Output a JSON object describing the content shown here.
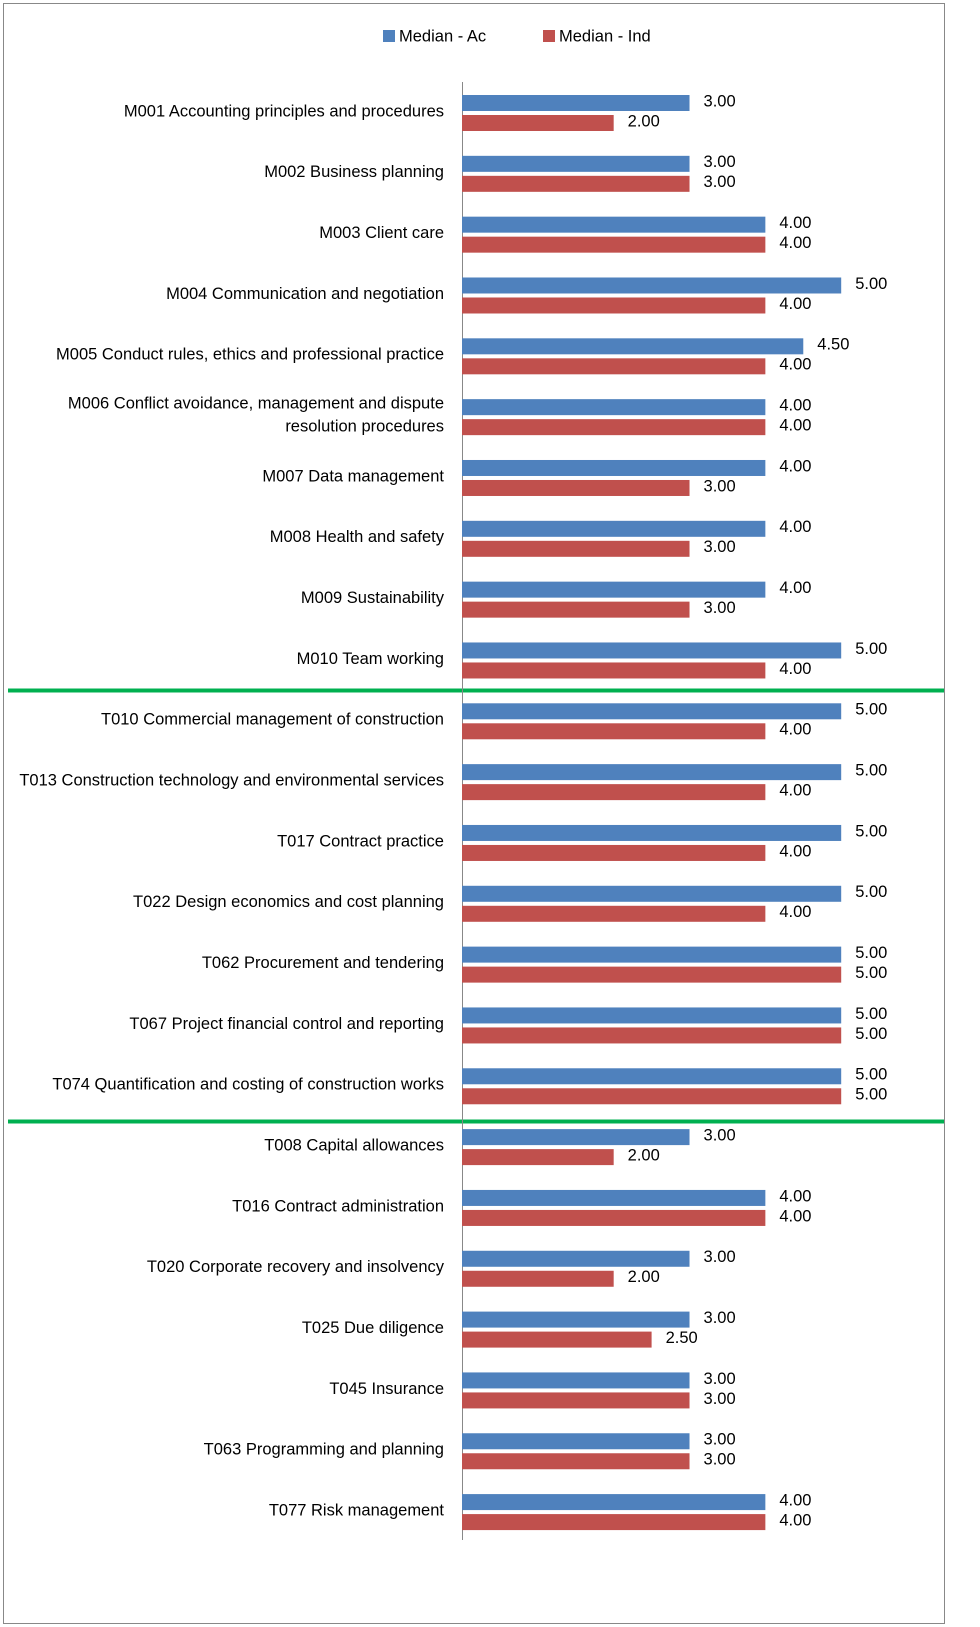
{
  "chart_data": {
    "type": "bar",
    "orientation": "horizontal",
    "categories": [
      "M001 Accounting principles and procedures",
      "M002 Business planning",
      "M003 Client care",
      "M004 Communication and negotiation",
      "M005 Conduct rules, ethics and professional practice",
      "M006 Conflict avoidance, management and dispute resolution procedures",
      "M007 Data management",
      "M008 Health and safety",
      "M009 Sustainability",
      "M010 Team working",
      "T010 Commercial management of construction",
      "T013 Construction technology and environmental services",
      "T017 Contract practice",
      "T022 Design economics and cost planning",
      "T062 Procurement and tendering",
      "T067 Project financial control and reporting",
      "T074 Quantification and costing of construction works",
      "T008 Capital allowances",
      "T016 Contract administration",
      "T020 Corporate recovery and insolvency",
      "T025 Due diligence",
      "T045 Insurance",
      "T063 Programming and planning",
      "T077 Risk management"
    ],
    "series": [
      {
        "name": "Median - Ac",
        "color": "#4f81bd",
        "values": [
          3,
          3,
          4,
          5,
          4.5,
          4,
          4,
          4,
          4,
          5,
          5,
          5,
          5,
          5,
          5,
          5,
          5,
          3,
          4,
          3,
          3,
          3,
          3,
          4
        ],
        "value_labels": [
          "3.00",
          "3.00",
          "4.00",
          "5.00",
          "4.50",
          "4.00",
          "4.00",
          "4.00",
          "4.00",
          "5.00",
          "5.00",
          "5.00",
          "5.00",
          "5.00",
          "5.00",
          "5.00",
          "5.00",
          "3.00",
          "4.00",
          "3.00",
          "3.00",
          "3.00",
          "3.00",
          "4.00"
        ]
      },
      {
        "name": "Median - Ind",
        "color": "#c0504d",
        "values": [
          2,
          3,
          4,
          4,
          4,
          4,
          3,
          3,
          3,
          4,
          4,
          4,
          4,
          4,
          5,
          5,
          5,
          2,
          4,
          2,
          2.5,
          3,
          3,
          4
        ],
        "value_labels": [
          "2.00",
          "3.00",
          "4.00",
          "4.00",
          "4.00",
          "4.00",
          "3.00",
          "3.00",
          "3.00",
          "4.00",
          "4.00",
          "4.00",
          "4.00",
          "4.00",
          "5.00",
          "5.00",
          "5.00",
          "2.00",
          "4.00",
          "2.00",
          "2.50",
          "3.00",
          "3.00",
          "4.00"
        ]
      }
    ],
    "xlim": [
      0,
      6.25
    ],
    "legend": "top"
  }
}
